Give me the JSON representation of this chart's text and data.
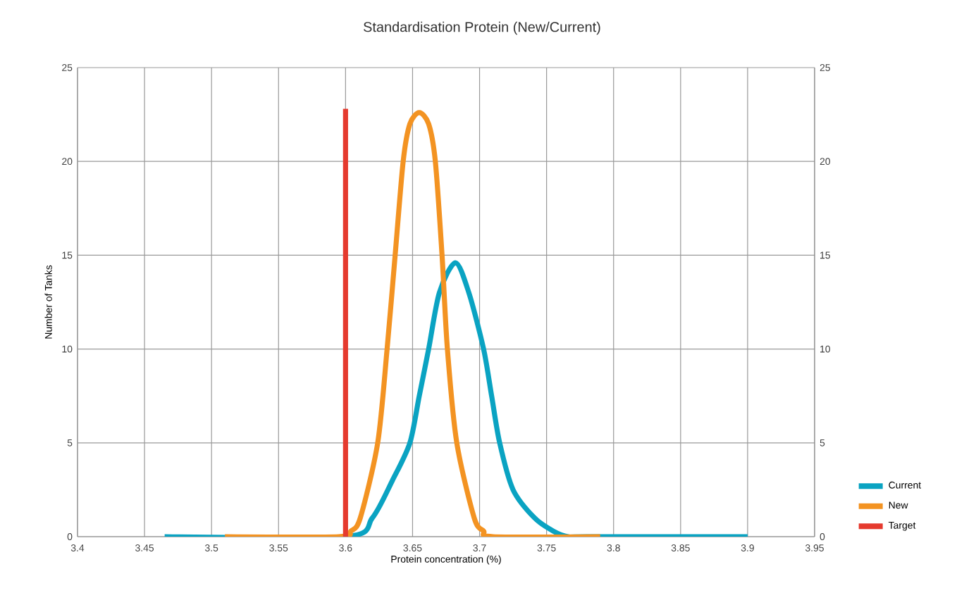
{
  "chart_data": {
    "type": "line",
    "title": "Standardisation Protein (New/Current)",
    "xlabel": "Protein concentration (%)",
    "ylabel": "Number of Tanks",
    "xlim": [
      3.4,
      3.95
    ],
    "xticks": [
      3.4,
      3.45,
      3.5,
      3.55,
      3.6,
      3.65,
      3.7,
      3.75,
      3.8,
      3.85,
      3.9,
      3.95
    ],
    "ylim": [
      0,
      25
    ],
    "yticks": [
      0,
      5,
      10,
      15,
      20,
      25
    ],
    "y2lim": [
      0,
      25
    ],
    "y2ticks": [
      0,
      5,
      10,
      15,
      20,
      25
    ],
    "grid": true,
    "legend": "bottom right",
    "series": [
      {
        "name": "Current",
        "color": "#0aa3c2",
        "x": [
          3.465,
          3.6,
          3.62,
          3.635,
          3.648,
          3.655,
          3.662,
          3.67,
          3.682,
          3.692,
          3.703,
          3.709,
          3.715,
          3.725,
          3.741,
          3.755,
          3.766,
          3.78,
          3.9
        ],
        "values": [
          0,
          0,
          1,
          3,
          5,
          7.5,
          10,
          13,
          14.6,
          13,
          10,
          7.5,
          5,
          2.5,
          1,
          0.3,
          0,
          0,
          0
        ]
      },
      {
        "name": "New",
        "color": "#f39322",
        "x": [
          3.51,
          3.595,
          3.604,
          3.611,
          3.624,
          3.631,
          3.637,
          3.643,
          3.648,
          3.655,
          3.662,
          3.667,
          3.672,
          3.676,
          3.683,
          3.696,
          3.703,
          3.71,
          3.79
        ],
        "values": [
          0,
          0,
          0.3,
          1,
          5,
          10,
          15,
          20,
          22,
          22.6,
          22,
          20,
          15,
          10,
          5,
          1,
          0.3,
          0,
          0
        ]
      },
      {
        "name": "Target",
        "color": "#e53a2e",
        "x": [
          3.6,
          3.6
        ],
        "values": [
          0,
          22.8
        ]
      }
    ]
  }
}
